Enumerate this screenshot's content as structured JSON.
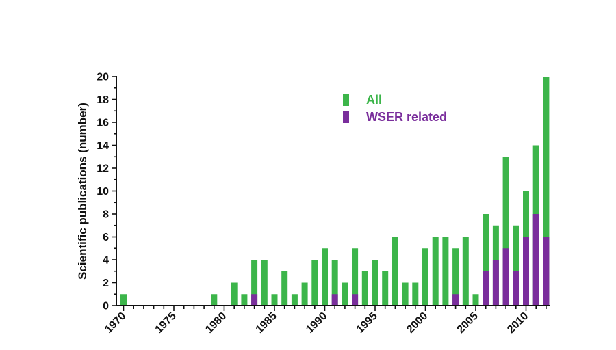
{
  "chart_data": {
    "type": "bar",
    "stacked": "overlay",
    "title": "",
    "xlabel": "",
    "ylabel": "Scientific publications (number)",
    "ylim": [
      0,
      20
    ],
    "yticks": [
      0,
      2,
      4,
      6,
      8,
      10,
      12,
      14,
      16,
      18,
      20
    ],
    "xlim": [
      1970,
      2012
    ],
    "xtick_labels": [
      "1970",
      "1975",
      "1980",
      "1985",
      "1990",
      "1995",
      "2000",
      "2005",
      "2010"
    ],
    "grid": false,
    "legend_position": "top-center",
    "series": [
      {
        "name": "All",
        "color": "#3cb54a",
        "x": [
          1970,
          1979,
          1981,
          1982,
          1983,
          1984,
          1985,
          1986,
          1987,
          1988,
          1989,
          1990,
          1991,
          1992,
          1993,
          1994,
          1995,
          1996,
          1997,
          1998,
          1999,
          2000,
          2001,
          2002,
          2003,
          2004,
          2005,
          2006,
          2007,
          2008,
          2009,
          2010,
          2011,
          2012
        ],
        "values": [
          1,
          1,
          2,
          1,
          4,
          4,
          1,
          3,
          1,
          2,
          4,
          5,
          4,
          2,
          5,
          3,
          4,
          3,
          6,
          2,
          2,
          5,
          6,
          6,
          5,
          6,
          1,
          8,
          7,
          13,
          7,
          10,
          14,
          20
        ]
      },
      {
        "name": "WSER related",
        "color": "#7a2e9c",
        "x": [
          1983,
          1991,
          1993,
          2003,
          2006,
          2007,
          2008,
          2009,
          2010,
          2011,
          2012
        ],
        "values": [
          1,
          1,
          1,
          1,
          3,
          4,
          5,
          3,
          6,
          8,
          6
        ]
      }
    ]
  }
}
